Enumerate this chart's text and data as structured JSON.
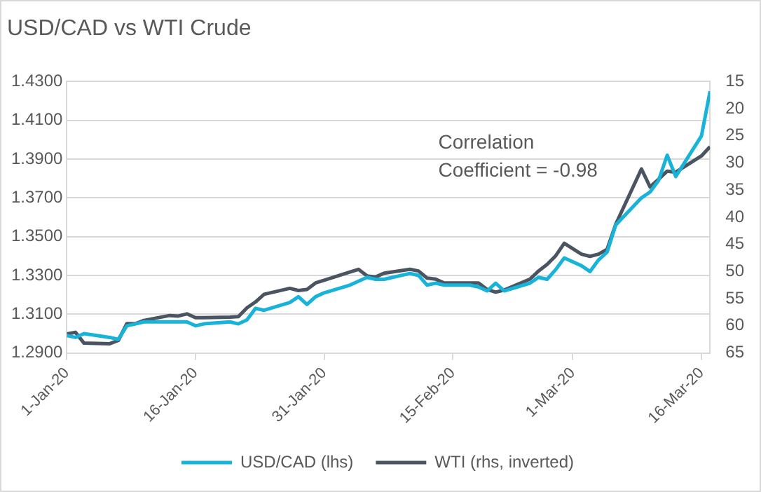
{
  "chart_data": {
    "type": "line",
    "title": "USD/CAD vs WTI Crude",
    "x": [
      "--01-01",
      "--01-02",
      "--01-03",
      "--01-06",
      "--01-07",
      "--01-08",
      "--01-09",
      "--01-10",
      "--01-13",
      "--01-14",
      "--01-15",
      "--01-16",
      "--01-17",
      "--01-20",
      "--01-21",
      "--01-22",
      "--01-23",
      "--01-24",
      "--01-27",
      "--01-28",
      "--01-29",
      "--01-30",
      "--01-31",
      "--02-03",
      "--02-04",
      "--02-05",
      "--02-06",
      "--02-07",
      "--02-10",
      "--02-11",
      "--02-12",
      "--02-13",
      "--02-14",
      "--02-17",
      "--02-18",
      "--02-19",
      "--02-20",
      "--02-21",
      "--02-24",
      "--02-25",
      "--02-26",
      "--02-27",
      "--02-28",
      "--03-02",
      "--03-03",
      "--03-04",
      "--03-05",
      "--03-06",
      "--03-09",
      "--03-10",
      "--03-11",
      "--03-12",
      "--03-13",
      "--03-16",
      "--03-17"
    ],
    "series": [
      {
        "name": "USD/CAD (lhs)",
        "color": "#17b3d8",
        "values": [
          1.299,
          1.298,
          1.3,
          1.298,
          1.297,
          1.304,
          1.305,
          1.306,
          1.306,
          1.306,
          1.306,
          1.304,
          1.305,
          1.306,
          1.305,
          1.307,
          1.313,
          1.312,
          1.316,
          1.319,
          1.315,
          1.319,
          1.321,
          1.325,
          1.327,
          1.329,
          1.328,
          1.328,
          1.331,
          1.33,
          1.325,
          1.326,
          1.325,
          1.325,
          1.324,
          1.322,
          1.326,
          1.322,
          1.326,
          1.329,
          1.328,
          1.333,
          1.339,
          1.335,
          1.332,
          1.338,
          1.342,
          1.356,
          1.37,
          1.373,
          1.379,
          1.392,
          1.381,
          1.402,
          1.425
        ]
      },
      {
        "name": "WTI (rhs, inverted)",
        "color": "#4a5561",
        "axis": "y2",
        "values": [
          61.5,
          61.2,
          63.2,
          63.3,
          62.7,
          59.6,
          59.6,
          59.0,
          58.1,
          58.2,
          57.8,
          58.5,
          58.5,
          58.4,
          58.3,
          56.7,
          55.6,
          54.2,
          53.1,
          53.5,
          53.3,
          52.1,
          51.6,
          50.1,
          49.6,
          50.8,
          51.0,
          50.3,
          49.6,
          49.9,
          51.2,
          51.4,
          52.1,
          52.1,
          52.1,
          53.3,
          53.8,
          53.4,
          51.4,
          49.9,
          48.7,
          47.1,
          44.8,
          46.8,
          47.2,
          46.8,
          45.9,
          41.3,
          31.1,
          34.4,
          33.0,
          31.5,
          31.7,
          28.7,
          27.0
        ]
      }
    ],
    "xlim": [
      "--01-01",
      "--03-17"
    ],
    "xticks": [
      {
        "value": "--01-01",
        "label": "1-Jan-20"
      },
      {
        "value": "--01-16",
        "label": "16-Jan-20"
      },
      {
        "value": "--01-31",
        "label": "31-Jan-20"
      },
      {
        "value": "--02-15",
        "label": "15-Feb-20"
      },
      {
        "value": "--03-01",
        "label": "1-Mar-20"
      },
      {
        "value": "--03-16",
        "label": "16-Mar-20"
      }
    ],
    "ylim": [
      1.29,
      1.43
    ],
    "yticks": [
      {
        "value": 1.29,
        "label": "1.2900"
      },
      {
        "value": 1.31,
        "label": "1.3100"
      },
      {
        "value": 1.33,
        "label": "1.3300"
      },
      {
        "value": 1.35,
        "label": "1.3500"
      },
      {
        "value": 1.37,
        "label": "1.3700"
      },
      {
        "value": 1.39,
        "label": "1.3900"
      },
      {
        "value": 1.41,
        "label": "1.4100"
      },
      {
        "value": 1.43,
        "label": "1.4300"
      }
    ],
    "y2lim": [
      65,
      15
    ],
    "y2ticks": [
      15,
      20,
      25,
      30,
      35,
      40,
      45,
      50,
      55,
      60,
      65
    ],
    "annotations": [
      "Correlation\nCoefficient = -0.98"
    ],
    "grid": "y",
    "legend": "bottom",
    "marker": "none",
    "line_style": "solid"
  }
}
